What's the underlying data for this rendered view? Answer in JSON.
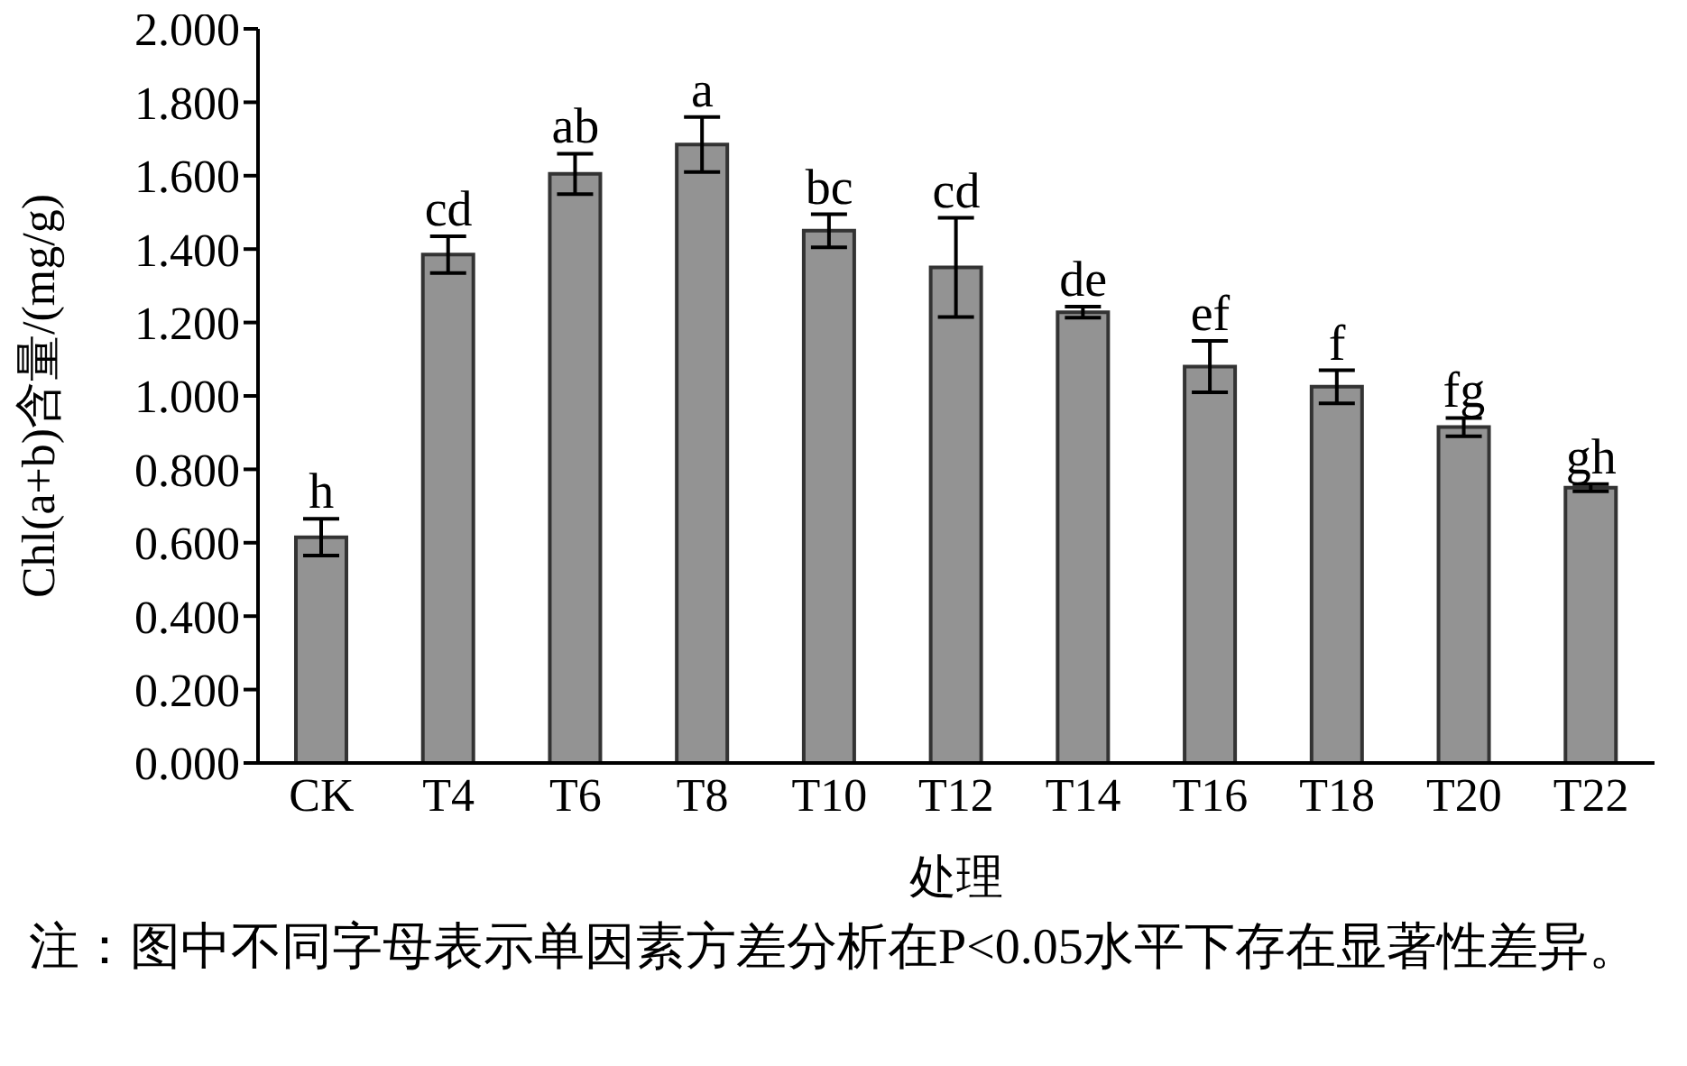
{
  "chart_data": {
    "type": "bar",
    "xlabel": "处理",
    "ylabel": "Chl(a+b)含量/(mg/g)",
    "categories": [
      "CK",
      "T4",
      "T6",
      "T8",
      "T10",
      "T12",
      "T14",
      "T16",
      "T18",
      "T20",
      "T22"
    ],
    "values": [
      0.615,
      1.385,
      1.605,
      1.685,
      1.45,
      1.35,
      1.228,
      1.08,
      1.025,
      0.915,
      0.75
    ],
    "errors": [
      0.05,
      0.05,
      0.055,
      0.075,
      0.045,
      0.135,
      0.015,
      0.07,
      0.045,
      0.025,
      0.01
    ],
    "color": "#939393",
    "ylim": [
      0,
      2
    ],
    "yticks": [
      {
        "value": 0,
        "label": "0.000"
      },
      {
        "value": 0.2,
        "label": "0.200"
      },
      {
        "value": 0.4,
        "label": "0.400"
      },
      {
        "value": 0.6,
        "label": "0.600"
      },
      {
        "value": 0.8,
        "label": "0.800"
      },
      {
        "value": 1,
        "label": "1.000"
      },
      {
        "value": 1.2,
        "label": "1.200"
      },
      {
        "value": 1.4,
        "label": "1.400"
      },
      {
        "value": 1.6,
        "label": "1.600"
      },
      {
        "value": 1.8,
        "label": "1.800"
      },
      {
        "value": 2,
        "label": "2.000"
      }
    ],
    "grid": false,
    "legend": false,
    "annotations": [
      {
        "text": "h",
        "x": "CK",
        "y": 0.665
      },
      {
        "text": "cd",
        "x": "T4",
        "y": 1.435
      },
      {
        "text": "ab",
        "x": "T6",
        "y": 1.66
      },
      {
        "text": "a",
        "x": "T8",
        "y": 1.76
      },
      {
        "text": "bc",
        "x": "T10",
        "y": 1.495
      },
      {
        "text": "cd",
        "x": "T12",
        "y": 1.485
      },
      {
        "text": "de",
        "x": "T14",
        "y": 1.243
      },
      {
        "text": "ef",
        "x": "T16",
        "y": 1.15
      },
      {
        "text": "f",
        "x": "T18",
        "y": 1.07
      },
      {
        "text": "fg",
        "x": "T20",
        "y": 0.94
      },
      {
        "text": "gh",
        "x": "T22",
        "y": 0.76
      },
      "注：图中不同字母表示单因素方差分析在P<0.05水平下存在显著性差异。"
    ]
  }
}
